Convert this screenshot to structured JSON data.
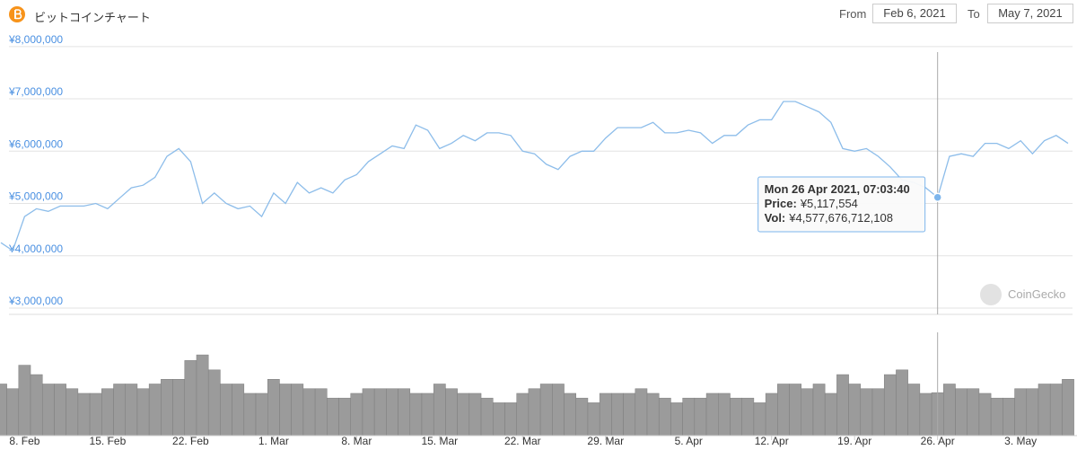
{
  "header": {
    "title": "ビットコインチャート",
    "from_label": "From",
    "from_value": "Feb 6, 2021",
    "to_label": "To",
    "to_value": "May 7, 2021"
  },
  "chart_data": {
    "type": "line",
    "x": [
      "2021-02-06",
      "2021-02-07",
      "2021-02-08",
      "2021-02-09",
      "2021-02-10",
      "2021-02-11",
      "2021-02-12",
      "2021-02-13",
      "2021-02-14",
      "2021-02-15",
      "2021-02-16",
      "2021-02-17",
      "2021-02-18",
      "2021-02-19",
      "2021-02-20",
      "2021-02-21",
      "2021-02-22",
      "2021-02-23",
      "2021-02-24",
      "2021-02-25",
      "2021-02-26",
      "2021-02-27",
      "2021-02-28",
      "2021-03-01",
      "2021-03-02",
      "2021-03-03",
      "2021-03-04",
      "2021-03-05",
      "2021-03-06",
      "2021-03-07",
      "2021-03-08",
      "2021-03-09",
      "2021-03-10",
      "2021-03-11",
      "2021-03-12",
      "2021-03-13",
      "2021-03-14",
      "2021-03-15",
      "2021-03-16",
      "2021-03-17",
      "2021-03-18",
      "2021-03-19",
      "2021-03-20",
      "2021-03-21",
      "2021-03-22",
      "2021-03-23",
      "2021-03-24",
      "2021-03-25",
      "2021-03-26",
      "2021-03-27",
      "2021-03-28",
      "2021-03-29",
      "2021-03-30",
      "2021-03-31",
      "2021-04-01",
      "2021-04-02",
      "2021-04-03",
      "2021-04-04",
      "2021-04-05",
      "2021-04-06",
      "2021-04-07",
      "2021-04-08",
      "2021-04-09",
      "2021-04-10",
      "2021-04-11",
      "2021-04-12",
      "2021-04-13",
      "2021-04-14",
      "2021-04-15",
      "2021-04-16",
      "2021-04-17",
      "2021-04-18",
      "2021-04-19",
      "2021-04-20",
      "2021-04-21",
      "2021-04-22",
      "2021-04-23",
      "2021-04-24",
      "2021-04-25",
      "2021-04-26",
      "2021-04-27",
      "2021-04-28",
      "2021-04-29",
      "2021-04-30",
      "2021-05-01",
      "2021-05-02",
      "2021-05-03",
      "2021-05-04",
      "2021-05-05",
      "2021-05-06",
      "2021-05-07"
    ],
    "series": [
      {
        "color": "#8dbdea",
        "values": [
          4250000,
          4100000,
          4750000,
          4900000,
          4850000,
          4950000,
          4950000,
          4950000,
          5000000,
          4900000,
          5100000,
          5300000,
          5350000,
          5500000,
          5900000,
          6050000,
          5800000,
          5000000,
          5200000,
          5000000,
          4900000,
          4950000,
          4750000,
          5200000,
          5000000,
          5400000,
          5200000,
          5300000,
          5200000,
          5450000,
          5550000,
          5800000,
          5950000,
          6100000,
          6050000,
          6500000,
          6400000,
          6050000,
          6150000,
          6300000,
          6200000,
          6350000,
          6350000,
          6300000,
          6000000,
          5950000,
          5750000,
          5650000,
          5900000,
          6000000,
          6000000,
          6250000,
          6450000,
          6450000,
          6450000,
          6550000,
          6350000,
          6350000,
          6400000,
          6350000,
          6150000,
          6300000,
          6300000,
          6500000,
          6600000,
          6600000,
          6950000,
          6950000,
          6850000,
          6750000,
          6550000,
          6050000,
          6000000,
          6050000,
          5900000,
          5700000,
          5450000,
          5400000,
          5300000,
          5117554,
          5900000,
          5950000,
          5900000,
          6150000,
          6150000,
          6050000,
          6200000,
          5950000,
          6200000,
          6300000,
          6150000
        ]
      }
    ],
    "volume": {
      "color": "#9b9b9b",
      "values": [
        5500000000000,
        5000000000000,
        7500000000000,
        6500000000000,
        5500000000000,
        5500000000000,
        5000000000000,
        4500000000000,
        4500000000000,
        5000000000000,
        5500000000000,
        5500000000000,
        5000000000000,
        5500000000000,
        6000000000000,
        6000000000000,
        8000000000000,
        8600000000000,
        7000000000000,
        5500000000000,
        5500000000000,
        4500000000000,
        4500000000000,
        6000000000000,
        5500000000000,
        5500000000000,
        5000000000000,
        5000000000000,
        4000000000000,
        4000000000000,
        4500000000000,
        5000000000000,
        5000000000000,
        5000000000000,
        5000000000000,
        4500000000000,
        4500000000000,
        5500000000000,
        5000000000000,
        4500000000000,
        4500000000000,
        4000000000000,
        3500000000000,
        3500000000000,
        4500000000000,
        5000000000000,
        5500000000000,
        5500000000000,
        4500000000000,
        4000000000000,
        3500000000000,
        4500000000000,
        4500000000000,
        4500000000000,
        5000000000000,
        4500000000000,
        4000000000000,
        3500000000000,
        4000000000000,
        4000000000000,
        4500000000000,
        4500000000000,
        4000000000000,
        4000000000000,
        3500000000000,
        4500000000000,
        5500000000000,
        5500000000000,
        5000000000000,
        5500000000000,
        4500000000000,
        6500000000000,
        5500000000000,
        5000000000000,
        5000000000000,
        6500000000000,
        7000000000000,
        5500000000000,
        4500000000000,
        4577676712108,
        5500000000000,
        5000000000000,
        5000000000000,
        4500000000000,
        4000000000000,
        4000000000000,
        5000000000000,
        5000000000000,
        5500000000000,
        5500000000000,
        6000000000000
      ]
    },
    "vol_ylim": [
      0,
      11000000000000
    ],
    "xlim": [
      "2021-02-06",
      "2021-05-07"
    ],
    "xticks": [
      {
        "value": "2021-02-08",
        "label": "8. Feb"
      },
      {
        "value": "2021-02-15",
        "label": "15. Feb"
      },
      {
        "value": "2021-02-22",
        "label": "22. Feb"
      },
      {
        "value": "2021-03-01",
        "label": "1. Mar"
      },
      {
        "value": "2021-03-08",
        "label": "8. Mar"
      },
      {
        "value": "2021-03-15",
        "label": "15. Mar"
      },
      {
        "value": "2021-03-22",
        "label": "22. Mar"
      },
      {
        "value": "2021-03-29",
        "label": "29. Mar"
      },
      {
        "value": "2021-04-05",
        "label": "5. Apr"
      },
      {
        "value": "2021-04-12",
        "label": "12. Apr"
      },
      {
        "value": "2021-04-19",
        "label": "19. Apr"
      },
      {
        "value": "2021-04-26",
        "label": "26. Apr"
      },
      {
        "value": "2021-05-03",
        "label": "3. May"
      }
    ],
    "ylim": [
      2880000,
      8100000
    ],
    "yticks": [
      {
        "value": 3000000,
        "label": "¥3,000,000"
      },
      {
        "value": 4000000,
        "label": "¥4,000,000"
      },
      {
        "value": 5000000,
        "label": "¥5,000,000"
      },
      {
        "value": 6000000,
        "label": "¥6,000,000"
      },
      {
        "value": 7000000,
        "label": "¥7,000,000"
      },
      {
        "value": 8000000,
        "label": "¥8,000,000"
      }
    ],
    "grid": true,
    "watermark": "CoinGecko",
    "tooltip": {
      "x": "2021-04-26",
      "title": "Mon 26 Apr 2021, 07:03:40",
      "price_label": "Price:",
      "price": "¥5,117,554",
      "vol_label": "Vol:",
      "vol": "¥4,577,676,712,108"
    }
  }
}
